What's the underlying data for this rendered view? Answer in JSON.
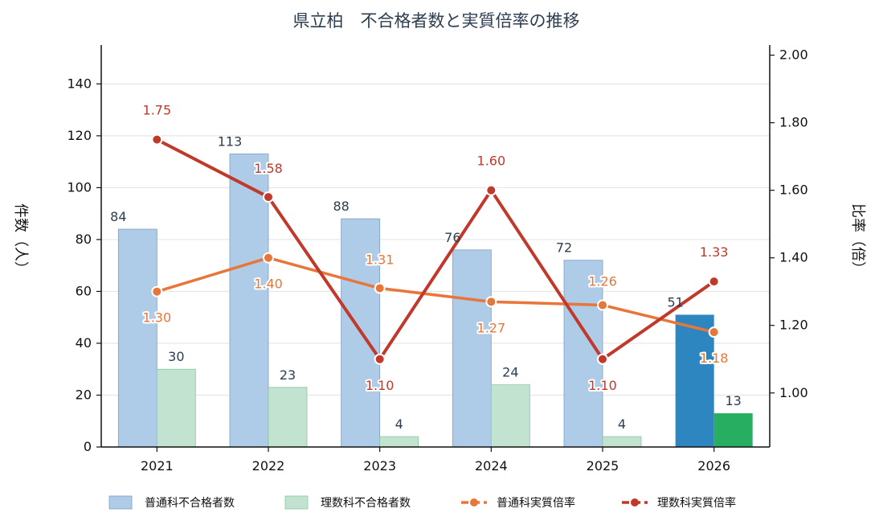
{
  "chart_data": {
    "type": "bar",
    "title": "県立柏　不合格者数と実質倍率の推移",
    "categories": [
      "2021",
      "2022",
      "2023",
      "2024",
      "2025",
      "2026"
    ],
    "ylabel": "件数（人）",
    "y2label": "比率（倍）",
    "ylim": [
      0,
      155
    ],
    "y2lim": [
      0.84,
      2.03
    ],
    "yticks": [
      "0",
      "20",
      "40",
      "60",
      "80",
      "100",
      "120",
      "140"
    ],
    "y2ticks": [
      "1.00",
      "1.20",
      "1.40",
      "1.60",
      "1.80",
      "2.00"
    ],
    "grid": true,
    "legend_position": "bottom",
    "bar_series": [
      {
        "name": "普通科不合格者数",
        "values": [
          84,
          113,
          88,
          76,
          72,
          51
        ],
        "labels": [
          "84",
          "113",
          "88",
          "76",
          "72",
          "51"
        ],
        "color": "#aecbe8",
        "highlight_color": "#2e86c1"
      },
      {
        "name": "理数科不合格者数",
        "values": [
          30,
          23,
          4,
          24,
          4,
          13
        ],
        "labels": [
          "30",
          "23",
          "4",
          "24",
          "4",
          "13"
        ],
        "color": "#c1e3d0",
        "highlight_color": "#27ae60"
      }
    ],
    "line_series": [
      {
        "name": "普通科実質倍率",
        "values": [
          1.3,
          1.4,
          1.31,
          1.27,
          1.26,
          1.18
        ],
        "labels": [
          "1.30",
          "1.40",
          "1.31",
          "1.27",
          "1.26",
          "1.18"
        ],
        "color": "#e8763a"
      },
      {
        "name": "理数科実質倍率",
        "values": [
          1.75,
          1.58,
          1.1,
          1.6,
          1.1,
          1.33
        ],
        "labels": [
          "1.75",
          "1.58",
          "1.10",
          "1.60",
          "1.10",
          "1.33"
        ],
        "color": "#c0392b"
      }
    ],
    "highlight_category": "2026"
  }
}
